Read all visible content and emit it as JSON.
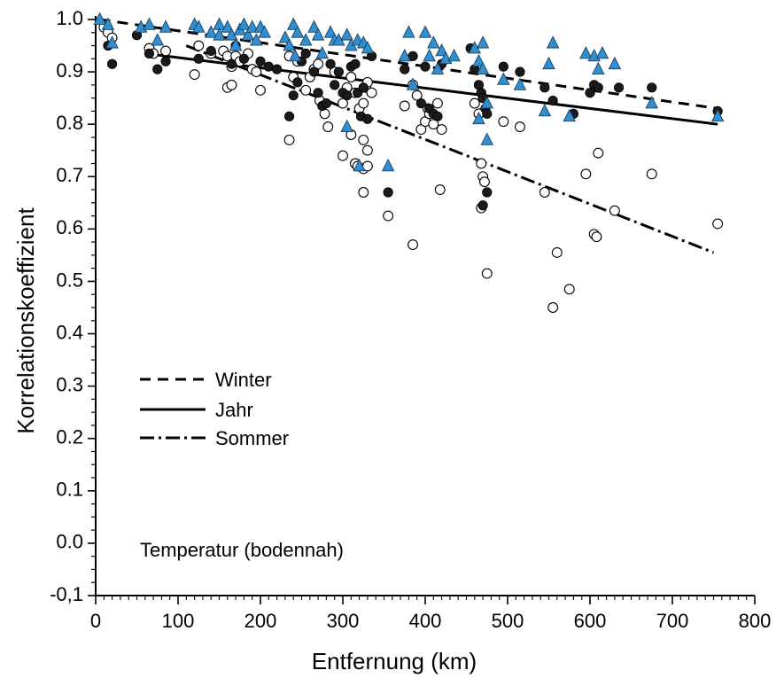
{
  "chart_data": {
    "type": "scatter",
    "xlabel": "Entfernung (km)",
    "ylabel": "Korrelationskoeffizient",
    "annotation": "Temperatur (bodennah)",
    "xlim": [
      0,
      800
    ],
    "ylim": [
      -0.1,
      1.0
    ],
    "x_ticks": [
      0,
      100,
      200,
      300,
      400,
      500,
      600,
      700,
      800
    ],
    "x_tick_labels": [
      "0",
      "100",
      "200",
      "300",
      "400",
      "500",
      "600",
      "700",
      "800"
    ],
    "y_ticks": [
      -0.1,
      0.0,
      0.1,
      0.2,
      0.3,
      0.4,
      0.5,
      0.6,
      0.7,
      0.8,
      0.9,
      1.0
    ],
    "y_tick_labels": [
      "-0,1",
      "0.0",
      "0.1",
      "0.2",
      "0.3",
      "0.4",
      "0.5",
      "0.6",
      "0.7",
      "0.8",
      "0.9",
      "1.0"
    ],
    "grid": false,
    "legend_position": "middle-left",
    "legend": [
      {
        "label": "Winter",
        "line_style": "dashed"
      },
      {
        "label": "Jahr",
        "line_style": "solid"
      },
      {
        "label": "Sommer",
        "line_style": "dash-dot"
      }
    ],
    "regression_lines": [
      {
        "name": "Winter",
        "style": "dashed",
        "from": [
          5,
          1.0
        ],
        "to": [
          755,
          0.83
        ]
      },
      {
        "name": "Jahr",
        "style": "solid",
        "from": [
          60,
          0.935
        ],
        "to": [
          755,
          0.8
        ]
      },
      {
        "name": "Sommer",
        "style": "dash-dot",
        "from": [
          110,
          0.95
        ],
        "to": [
          750,
          0.555
        ]
      }
    ],
    "series": [
      {
        "marker": "triangle",
        "color": "#2f8fd0",
        "points": [
          [
            5,
            1.0
          ],
          [
            15,
            0.99
          ],
          [
            20,
            0.955
          ],
          [
            55,
            0.985
          ],
          [
            65,
            0.99
          ],
          [
            75,
            0.96
          ],
          [
            85,
            0.985
          ],
          [
            120,
            0.99
          ],
          [
            125,
            0.985
          ],
          [
            140,
            0.975
          ],
          [
            150,
            0.99
          ],
          [
            150,
            0.97
          ],
          [
            160,
            0.985
          ],
          [
            165,
            0.97
          ],
          [
            170,
            0.95
          ],
          [
            175,
            0.98
          ],
          [
            180,
            0.99
          ],
          [
            185,
            0.97
          ],
          [
            190,
            0.985
          ],
          [
            195,
            0.96
          ],
          [
            200,
            0.985
          ],
          [
            205,
            0.975
          ],
          [
            230,
            0.965
          ],
          [
            235,
            0.95
          ],
          [
            240,
            0.99
          ],
          [
            242,
            0.93
          ],
          [
            245,
            0.975
          ],
          [
            255,
            0.96
          ],
          [
            265,
            0.985
          ],
          [
            270,
            0.97
          ],
          [
            275,
            0.935
          ],
          [
            285,
            0.975
          ],
          [
            290,
            0.96
          ],
          [
            295,
            0.96
          ],
          [
            305,
            0.97
          ],
          [
            310,
            0.95
          ],
          [
            318,
            0.96
          ],
          [
            325,
            0.955
          ],
          [
            330,
            0.945
          ],
          [
            305,
            0.795
          ],
          [
            320,
            0.72
          ],
          [
            355,
            0.72
          ],
          [
            375,
            0.93
          ],
          [
            385,
            0.875
          ],
          [
            380,
            0.975
          ],
          [
            400,
            0.975
          ],
          [
            405,
            0.93
          ],
          [
            410,
            0.955
          ],
          [
            415,
            0.905
          ],
          [
            420,
            0.94
          ],
          [
            425,
            0.925
          ],
          [
            435,
            0.93
          ],
          [
            460,
            0.945
          ],
          [
            470,
            0.955
          ],
          [
            465,
            0.92
          ],
          [
            470,
            0.905
          ],
          [
            475,
            0.84
          ],
          [
            465,
            0.81
          ],
          [
            475,
            0.77
          ],
          [
            495,
            0.885
          ],
          [
            515,
            0.875
          ],
          [
            545,
            0.825
          ],
          [
            550,
            0.915
          ],
          [
            555,
            0.955
          ],
          [
            575,
            0.815
          ],
          [
            595,
            0.935
          ],
          [
            605,
            0.93
          ],
          [
            610,
            0.905
          ],
          [
            615,
            0.935
          ],
          [
            630,
            0.915
          ],
          [
            675,
            0.84
          ],
          [
            755,
            0.815
          ]
        ]
      },
      {
        "marker": "filled-circle",
        "color": "#1a1a1a",
        "points": [
          [
            15,
            0.95
          ],
          [
            20,
            0.915
          ],
          [
            50,
            0.97
          ],
          [
            65,
            0.935
          ],
          [
            75,
            0.905
          ],
          [
            85,
            0.92
          ],
          [
            125,
            0.925
          ],
          [
            140,
            0.94
          ],
          [
            165,
            0.915
          ],
          [
            170,
            0.95
          ],
          [
            180,
            0.925
          ],
          [
            200,
            0.92
          ],
          [
            210,
            0.91
          ],
          [
            220,
            0.905
          ],
          [
            235,
            0.815
          ],
          [
            240,
            0.855
          ],
          [
            245,
            0.88
          ],
          [
            250,
            0.92
          ],
          [
            255,
            0.935
          ],
          [
            265,
            0.9
          ],
          [
            270,
            0.86
          ],
          [
            275,
            0.835
          ],
          [
            280,
            0.84
          ],
          [
            285,
            0.915
          ],
          [
            290,
            0.875
          ],
          [
            295,
            0.9
          ],
          [
            300,
            0.86
          ],
          [
            305,
            0.855
          ],
          [
            310,
            0.91
          ],
          [
            315,
            0.915
          ],
          [
            318,
            0.86
          ],
          [
            322,
            0.815
          ],
          [
            325,
            0.87
          ],
          [
            330,
            0.81
          ],
          [
            335,
            0.93
          ],
          [
            355,
            0.67
          ],
          [
            375,
            0.905
          ],
          [
            385,
            0.93
          ],
          [
            395,
            0.84
          ],
          [
            400,
            0.91
          ],
          [
            405,
            0.83
          ],
          [
            410,
            0.82
          ],
          [
            415,
            0.815
          ],
          [
            420,
            0.915
          ],
          [
            455,
            0.945
          ],
          [
            460,
            0.905
          ],
          [
            465,
            0.875
          ],
          [
            468,
            0.86
          ],
          [
            470,
            0.85
          ],
          [
            473,
            0.83
          ],
          [
            475,
            0.82
          ],
          [
            470,
            0.645
          ],
          [
            475,
            0.67
          ],
          [
            495,
            0.91
          ],
          [
            515,
            0.9
          ],
          [
            545,
            0.87
          ],
          [
            555,
            0.845
          ],
          [
            580,
            0.82
          ],
          [
            600,
            0.86
          ],
          [
            605,
            0.875
          ],
          [
            610,
            0.87
          ],
          [
            635,
            0.87
          ],
          [
            675,
            0.87
          ],
          [
            755,
            0.825
          ]
        ]
      },
      {
        "marker": "open-circle",
        "color": "#ffffff",
        "points": [
          [
            10,
            0.985
          ],
          [
            15,
            0.975
          ],
          [
            20,
            0.965
          ],
          [
            65,
            0.945
          ],
          [
            70,
            0.935
          ],
          [
            85,
            0.94
          ],
          [
            120,
            0.895
          ],
          [
            125,
            0.95
          ],
          [
            140,
            0.935
          ],
          [
            155,
            0.94
          ],
          [
            160,
            0.93
          ],
          [
            165,
            0.91
          ],
          [
            170,
            0.93
          ],
          [
            175,
            0.92
          ],
          [
            185,
            0.935
          ],
          [
            190,
            0.905
          ],
          [
            195,
            0.9
          ],
          [
            200,
            0.865
          ],
          [
            160,
            0.87
          ],
          [
            165,
            0.875
          ],
          [
            235,
            0.93
          ],
          [
            240,
            0.89
          ],
          [
            245,
            0.92
          ],
          [
            255,
            0.865
          ],
          [
            260,
            0.89
          ],
          [
            265,
            0.905
          ],
          [
            270,
            0.915
          ],
          [
            272,
            0.845
          ],
          [
            278,
            0.82
          ],
          [
            282,
            0.795
          ],
          [
            290,
            0.9
          ],
          [
            300,
            0.84
          ],
          [
            305,
            0.87
          ],
          [
            310,
            0.89
          ],
          [
            315,
            0.86
          ],
          [
            320,
            0.83
          ],
          [
            325,
            0.84
          ],
          [
            328,
            0.87
          ],
          [
            330,
            0.88
          ],
          [
            335,
            0.86
          ],
          [
            310,
            0.78
          ],
          [
            325,
            0.77
          ],
          [
            330,
            0.75
          ],
          [
            300,
            0.74
          ],
          [
            315,
            0.725
          ],
          [
            318,
            0.72
          ],
          [
            325,
            0.715
          ],
          [
            330,
            0.72
          ],
          [
            235,
            0.77
          ],
          [
            325,
            0.67
          ],
          [
            355,
            0.625
          ],
          [
            375,
            0.835
          ],
          [
            385,
            0.875
          ],
          [
            390,
            0.855
          ],
          [
            395,
            0.79
          ],
          [
            400,
            0.805
          ],
          [
            403,
            0.83
          ],
          [
            405,
            0.82
          ],
          [
            410,
            0.8
          ],
          [
            415,
            0.84
          ],
          [
            420,
            0.79
          ],
          [
            418,
            0.675
          ],
          [
            385,
            0.57
          ],
          [
            460,
            0.84
          ],
          [
            465,
            0.82
          ],
          [
            468,
            0.725
          ],
          [
            470,
            0.7
          ],
          [
            472,
            0.69
          ],
          [
            468,
            0.64
          ],
          [
            475,
            0.515
          ],
          [
            495,
            0.805
          ],
          [
            515,
            0.795
          ],
          [
            545,
            0.67
          ],
          [
            555,
            0.45
          ],
          [
            560,
            0.555
          ],
          [
            575,
            0.485
          ],
          [
            595,
            0.705
          ],
          [
            605,
            0.59
          ],
          [
            608,
            0.585
          ],
          [
            610,
            0.745
          ],
          [
            630,
            0.635
          ],
          [
            675,
            0.705
          ],
          [
            755,
            0.61
          ]
        ]
      }
    ]
  }
}
